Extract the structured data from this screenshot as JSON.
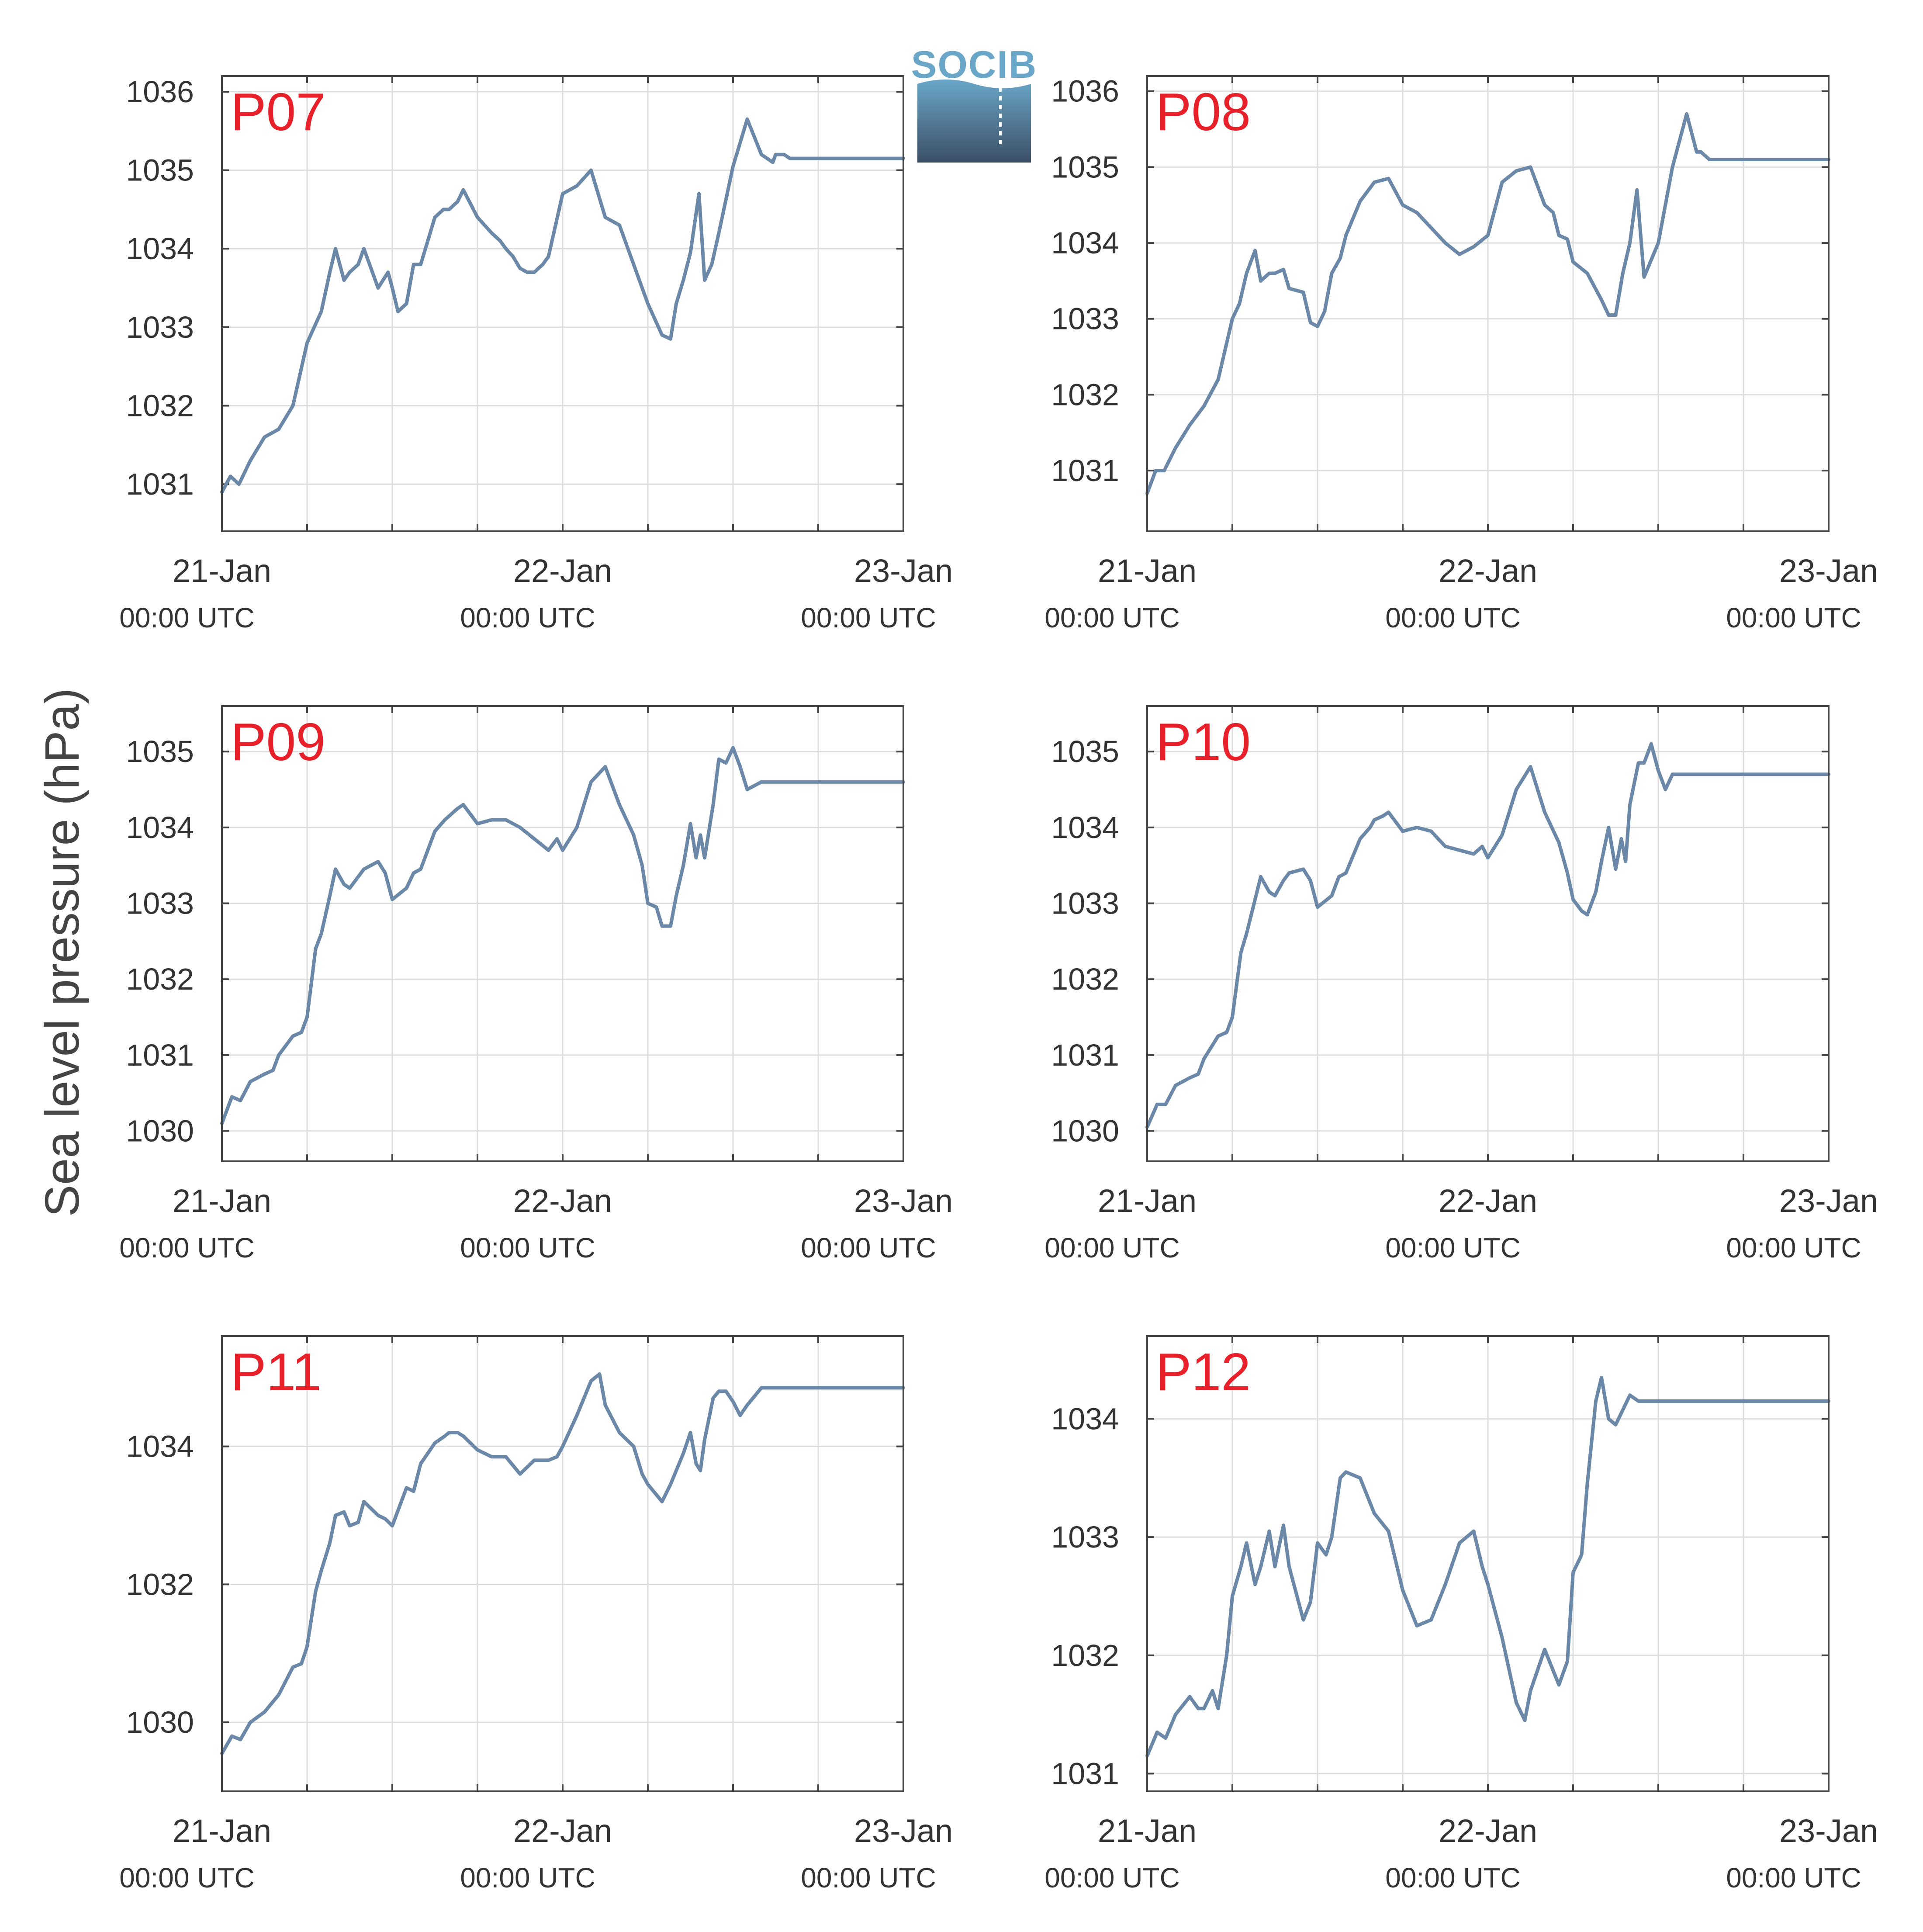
{
  "figure": {
    "ylabel": "Sea level pressure (hPa)",
    "logo_text": "SOCIB",
    "x_tick_dates": [
      "21-Jan",
      "22-Jan",
      "23-Jan"
    ],
    "x_tick_times": [
      "00:00 UTC",
      "00:00 UTC",
      "00:00 UTC"
    ]
  },
  "colors": {
    "series": "#6b88a8",
    "station_label": "#e8202a",
    "grid": "#dddddd",
    "axis": "#444444",
    "text": "#333333",
    "logo_top": "#6aa6c8",
    "logo_bottom": "#3c4f66"
  },
  "chart_data": [
    {
      "type": "line",
      "station": "P07",
      "x_unit": "hours since 21-Jan 00:00 UTC",
      "xlim": [
        0,
        48
      ],
      "ylim": [
        1030.4,
        1036.2
      ],
      "yticks": [
        "1031",
        "1032",
        "1033",
        "1034",
        "1035",
        "1036"
      ],
      "x": [
        0,
        0.6,
        1.2,
        2,
        3,
        4,
        5,
        6,
        7,
        7.6,
        8,
        8.6,
        9,
        9.6,
        10,
        11,
        11.7,
        12,
        12.4,
        13,
        13.5,
        14,
        15,
        15.6,
        16,
        16.6,
        17,
        18,
        19,
        19.6,
        20,
        20.5,
        21,
        21.5,
        22,
        22.6,
        23,
        24,
        25,
        26,
        27,
        28,
        29,
        30,
        31,
        31.6,
        32,
        32.5,
        33,
        33.6,
        34,
        34.5,
        35,
        36,
        37,
        38,
        38.8,
        39,
        39.6,
        40,
        40.5,
        41,
        41.5,
        42,
        42.5,
        43,
        43.5,
        44,
        44.5,
        45,
        45.5,
        46,
        46.5,
        47,
        47.5,
        48
      ],
      "y": [
        1030.9,
        1031.1,
        1031,
        1031.3,
        1031.6,
        1031.7,
        1032,
        1032.8,
        1033.2,
        1033.7,
        1034,
        1033.6,
        1033.7,
        1033.8,
        1034,
        1033.5,
        1033.7,
        1033.5,
        1033.2,
        1033.3,
        1033.8,
        1033.8,
        1034.4,
        1034.5,
        1034.5,
        1034.6,
        1034.75,
        1034.4,
        1034.2,
        1034.1,
        1034,
        1033.9,
        1033.75,
        1033.7,
        1033.7,
        1033.8,
        1033.9,
        1034.7,
        1034.8,
        1035,
        1034.4,
        1034.3,
        1033.8,
        1033.3,
        1032.9,
        1032.85,
        1033.3,
        1033.6,
        1033.95,
        1034.7,
        1033.6,
        1033.8,
        1034.2,
        1035.05,
        1035.65,
        1035.2,
        1035.1,
        1035.2,
        1035.2,
        1035.15,
        1035.15,
        1035.15,
        1035.15,
        1035.15,
        1035.15,
        1035.15,
        1035.15,
        1035.15,
        1035.15,
        1035.15,
        1035.15,
        1035.15,
        1035.15,
        1035.15,
        1035.15,
        1035.15
      ]
    },
    {
      "type": "line",
      "station": "P08",
      "x_unit": "hours since 21-Jan 00:00 UTC",
      "xlim": [
        0,
        48
      ],
      "ylim": [
        1030.2,
        1036.2
      ],
      "yticks": [
        "1031",
        "1032",
        "1033",
        "1034",
        "1035",
        "1036"
      ],
      "x": [
        0,
        0.6,
        1.2,
        2,
        3,
        4,
        5,
        6,
        6.5,
        7,
        7.6,
        8,
        8.6,
        9,
        9.6,
        10,
        11,
        11.5,
        12,
        12.5,
        13,
        13.6,
        14,
        15,
        16,
        17,
        18,
        19,
        20,
        21,
        22,
        23,
        24,
        25,
        26,
        27,
        28,
        28.6,
        29,
        29.6,
        30,
        31,
        32,
        32.5,
        33,
        33.5,
        34,
        34.5,
        35,
        36,
        37,
        38,
        38.7,
        39,
        39.6,
        40,
        41,
        42,
        43,
        44,
        45,
        46,
        47,
        48
      ],
      "y": [
        1030.7,
        1031,
        1031,
        1031.3,
        1031.6,
        1031.85,
        1032.2,
        1033,
        1033.2,
        1033.6,
        1033.9,
        1033.5,
        1033.6,
        1033.6,
        1033.65,
        1033.4,
        1033.35,
        1032.95,
        1032.9,
        1033.1,
        1033.6,
        1033.8,
        1034.1,
        1034.55,
        1034.8,
        1034.85,
        1034.5,
        1034.4,
        1034.2,
        1034,
        1033.85,
        1033.95,
        1034.1,
        1034.8,
        1034.95,
        1035,
        1034.5,
        1034.4,
        1034.1,
        1034.05,
        1033.75,
        1033.6,
        1033.25,
        1033.05,
        1033.05,
        1033.6,
        1034.0,
        1034.7,
        1033.55,
        1034.0,
        1035.0,
        1035.7,
        1035.2,
        1035.2,
        1035.1,
        1035.1,
        1035.1,
        1035.1,
        1035.1,
        1035.1,
        1035.1,
        1035.1,
        1035.1,
        1035.1
      ]
    },
    {
      "type": "line",
      "station": "P09",
      "x_unit": "hours since 21-Jan 00:00 UTC",
      "xlim": [
        0,
        48
      ],
      "ylim": [
        1029.6,
        1035.6
      ],
      "yticks": [
        "1030",
        "1031",
        "1032",
        "1033",
        "1034",
        "1035"
      ],
      "x": [
        0,
        0.7,
        1.3,
        2,
        3,
        3.6,
        4,
        5,
        5.6,
        6,
        6.6,
        7,
        7.6,
        8,
        8.6,
        9,
        9.6,
        10,
        11,
        11.5,
        12,
        13,
        13.5,
        14,
        15,
        15.7,
        16,
        16.6,
        17,
        18,
        19,
        20,
        21,
        22,
        23,
        23.6,
        24,
        25,
        26,
        27,
        28,
        29,
        29.6,
        30,
        30.6,
        31,
        31.6,
        32,
        32.5,
        33,
        33.4,
        33.7,
        34,
        34.6,
        35,
        35.5,
        36,
        36.5,
        37,
        38,
        39,
        39.6,
        40,
        40.6,
        41,
        42,
        43,
        44,
        45,
        46,
        47,
        48
      ],
      "y": [
        1030.1,
        1030.45,
        1030.4,
        1030.65,
        1030.75,
        1030.8,
        1031.0,
        1031.25,
        1031.3,
        1031.5,
        1032.4,
        1032.6,
        1033.1,
        1033.45,
        1033.25,
        1033.2,
        1033.35,
        1033.45,
        1033.55,
        1033.4,
        1033.05,
        1033.2,
        1033.4,
        1033.45,
        1033.95,
        1034.1,
        1034.15,
        1034.25,
        1034.3,
        1034.05,
        1034.1,
        1034.1,
        1034.0,
        1033.85,
        1033.7,
        1033.85,
        1033.7,
        1034.0,
        1034.6,
        1034.8,
        1034.3,
        1033.9,
        1033.5,
        1033.0,
        1032.95,
        1032.7,
        1032.7,
        1033.1,
        1033.5,
        1034.05,
        1033.6,
        1033.9,
        1033.6,
        1034.3,
        1034.9,
        1034.85,
        1035.05,
        1034.8,
        1034.5,
        1034.6,
        1034.6,
        1034.6,
        1034.6,
        1034.6,
        1034.6,
        1034.6,
        1034.6,
        1034.6,
        1034.6,
        1034.6,
        1034.6,
        1034.6
      ]
    },
    {
      "type": "line",
      "station": "P10",
      "x_unit": "hours since 21-Jan 00:00 UTC",
      "xlim": [
        0,
        48
      ],
      "ylim": [
        1029.6,
        1035.6
      ],
      "yticks": [
        "1030",
        "1031",
        "1032",
        "1033",
        "1034",
        "1035"
      ],
      "x": [
        0,
        0.7,
        1.3,
        2,
        3,
        3.6,
        4,
        5,
        5.6,
        6,
        6.6,
        7,
        7.6,
        8,
        8.6,
        9,
        9.6,
        10,
        11,
        11.5,
        12,
        13,
        13.5,
        14,
        15,
        15.7,
        16,
        16.6,
        17,
        18,
        19,
        20,
        21,
        22,
        23,
        23.6,
        24,
        25,
        26,
        27,
        28,
        29,
        29.6,
        30,
        30.6,
        31,
        31.6,
        32,
        32.5,
        33,
        33.4,
        33.7,
        34,
        34.6,
        35,
        35.5,
        36,
        36.5,
        37,
        38,
        39,
        39.6,
        40,
        40.6,
        41,
        42,
        43,
        44,
        45,
        46,
        47,
        48
      ],
      "y": [
        1030.05,
        1030.35,
        1030.35,
        1030.6,
        1030.7,
        1030.75,
        1030.95,
        1031.25,
        1031.3,
        1031.5,
        1032.35,
        1032.6,
        1033.05,
        1033.35,
        1033.15,
        1033.1,
        1033.3,
        1033.4,
        1033.45,
        1033.3,
        1032.95,
        1033.1,
        1033.35,
        1033.4,
        1033.85,
        1034.0,
        1034.1,
        1034.15,
        1034.2,
        1033.95,
        1034.0,
        1033.95,
        1033.75,
        1033.7,
        1033.65,
        1033.75,
        1033.6,
        1033.9,
        1034.5,
        1034.8,
        1034.2,
        1033.8,
        1033.4,
        1033.05,
        1032.9,
        1032.85,
        1033.15,
        1033.55,
        1034.0,
        1033.45,
        1033.85,
        1033.55,
        1034.3,
        1034.85,
        1034.85,
        1035.1,
        1034.75,
        1034.5,
        1034.7,
        1034.7,
        1034.7,
        1034.7,
        1034.7,
        1034.7,
        1034.7,
        1034.7,
        1034.7,
        1034.7,
        1034.7,
        1034.7,
        1034.7,
        1034.7
      ]
    },
    {
      "type": "line",
      "station": "P11",
      "x_unit": "hours since 21-Jan 00:00 UTC",
      "xlim": [
        0,
        48
      ],
      "ylim": [
        1029.0,
        1035.6
      ],
      "yticks": [
        "1030",
        "1032",
        "1034"
      ],
      "x": [
        0,
        0.7,
        1.3,
        2,
        3,
        4,
        5,
        5.6,
        6,
        6.6,
        7,
        7.6,
        8,
        8.6,
        9,
        9.6,
        10,
        11,
        11.5,
        12,
        13,
        13.5,
        14,
        15,
        15.7,
        16,
        16.6,
        17,
        18,
        19,
        20,
        21,
        22,
        23,
        23.6,
        24,
        25,
        26,
        26.6,
        27,
        28,
        29,
        29.6,
        30,
        30.6,
        31,
        31.6,
        32,
        32.5,
        33,
        33.4,
        33.7,
        34,
        34.6,
        35,
        35.5,
        36,
        36.5,
        37,
        38,
        39,
        40,
        41,
        42,
        43,
        44,
        45,
        46,
        47,
        48
      ],
      "y": [
        1029.55,
        1029.8,
        1029.75,
        1030.0,
        1030.15,
        1030.4,
        1030.8,
        1030.85,
        1031.1,
        1031.9,
        1032.2,
        1032.6,
        1033.0,
        1033.05,
        1032.85,
        1032.9,
        1033.2,
        1033.0,
        1032.95,
        1032.85,
        1033.4,
        1033.35,
        1033.75,
        1034.05,
        1034.15,
        1034.2,
        1034.2,
        1034.15,
        1033.95,
        1033.85,
        1033.85,
        1033.6,
        1033.8,
        1033.8,
        1033.85,
        1034.0,
        1034.45,
        1034.95,
        1035.05,
        1034.6,
        1034.2,
        1034.0,
        1033.6,
        1033.45,
        1033.3,
        1033.2,
        1033.45,
        1033.65,
        1033.9,
        1034.2,
        1033.75,
        1033.65,
        1034.1,
        1034.7,
        1034.8,
        1034.8,
        1034.65,
        1034.45,
        1034.6,
        1034.85,
        1034.85,
        1034.85,
        1034.85,
        1034.85,
        1034.85,
        1034.85,
        1034.85,
        1034.85,
        1034.85,
        1034.85
      ]
    },
    {
      "type": "line",
      "station": "P12",
      "x_unit": "hours since 21-Jan 00:00 UTC",
      "xlim": [
        0,
        48
      ],
      "ylim": [
        1030.85,
        1034.7
      ],
      "yticks": [
        "1031",
        "1032",
        "1033",
        "1034"
      ],
      "x": [
        0,
        0.7,
        1.3,
        2,
        3,
        3.6,
        4,
        4.6,
        5,
        5.6,
        6,
        6.6,
        7,
        7.6,
        8,
        8.6,
        9,
        9.6,
        10,
        11,
        11.5,
        12,
        12.6,
        13,
        13.6,
        14,
        15,
        16,
        17,
        17.6,
        18,
        19,
        20,
        21,
        22,
        23,
        23.6,
        24,
        25,
        26,
        26.6,
        27,
        28,
        29,
        29.6,
        30,
        30.6,
        31,
        31.6,
        32,
        32.5,
        33,
        33.6,
        34,
        34.6,
        35,
        35.5,
        36,
        36.5,
        37,
        38,
        39,
        40,
        41,
        42,
        43,
        44,
        45,
        46,
        47,
        48
      ],
      "y": [
        1031.15,
        1031.35,
        1031.3,
        1031.5,
        1031.65,
        1031.55,
        1031.55,
        1031.7,
        1031.55,
        1032.0,
        1032.5,
        1032.75,
        1032.95,
        1032.6,
        1032.75,
        1033.05,
        1032.75,
        1033.1,
        1032.75,
        1032.3,
        1032.45,
        1032.95,
        1032.85,
        1033.0,
        1033.5,
        1033.55,
        1033.5,
        1033.2,
        1033.05,
        1032.75,
        1032.55,
        1032.25,
        1032.3,
        1032.6,
        1032.95,
        1033.05,
        1032.75,
        1032.6,
        1032.15,
        1031.6,
        1031.45,
        1031.7,
        1032.05,
        1031.75,
        1031.95,
        1032.7,
        1032.85,
        1033.45,
        1034.15,
        1034.35,
        1034.0,
        1033.95,
        1034.1,
        1034.2,
        1034.15,
        1034.15,
        1034.15,
        1034.15,
        1034.15,
        1034.15,
        1034.15,
        1034.15,
        1034.15,
        1034.15,
        1034.15,
        1034.15,
        1034.15,
        1034.15,
        1034.15,
        1034.15,
        1034.15
      ]
    }
  ]
}
